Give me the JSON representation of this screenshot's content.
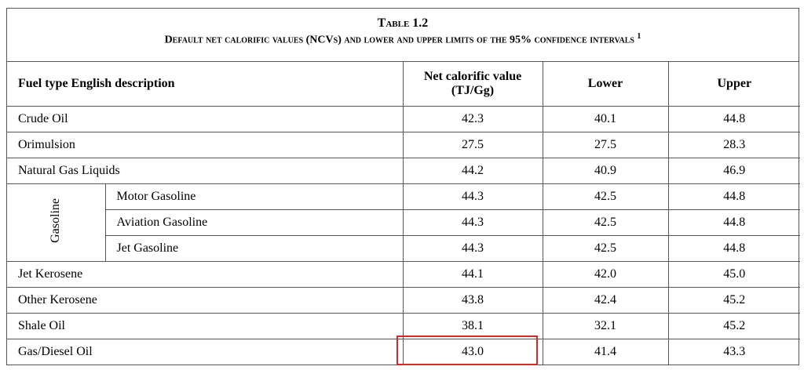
{
  "header": {
    "title": "Table 1.2",
    "subtitle": "Default net calorific values (NCVs) and lower and upper limits of the 95% confidence intervals",
    "footnote": "1"
  },
  "table": {
    "columns": [
      "Fuel type English description",
      "Net calorific value (TJ/Gg)",
      "Lower",
      "Upper"
    ],
    "rows": [
      {
        "fuel": "Crude Oil",
        "values": [
          "42.3",
          "40.1",
          "44.8"
        ]
      },
      {
        "fuel": "Orimulsion",
        "values": [
          "27.5",
          "27.5",
          "28.3"
        ]
      },
      {
        "fuel": "Natural Gas Liquids",
        "values": [
          "44.2",
          "40.9",
          "46.9"
        ]
      },
      {
        "group": "Gasoline",
        "items": [
          {
            "fuel": "Motor Gasoline",
            "values": [
              "44.3",
              "42.5",
              "44.8"
            ]
          },
          {
            "fuel": "Aviation Gasoline",
            "values": [
              "44.3",
              "42.5",
              "44.8"
            ]
          },
          {
            "fuel": "Jet Gasoline",
            "values": [
              "44.3",
              "42.5",
              "44.8"
            ]
          }
        ]
      },
      {
        "fuel": "Jet Kerosene",
        "values": [
          "44.1",
          "42.0",
          "45.0"
        ]
      },
      {
        "fuel": "Other Kerosene",
        "values": [
          "43.8",
          "42.4",
          "45.2"
        ]
      },
      {
        "fuel": "Shale Oil",
        "values": [
          "38.1",
          "32.1",
          "45.2"
        ]
      },
      {
        "fuel": "Gas/Diesel Oil",
        "values": [
          "43.0",
          "41.4",
          "43.3"
        ]
      }
    ]
  }
}
